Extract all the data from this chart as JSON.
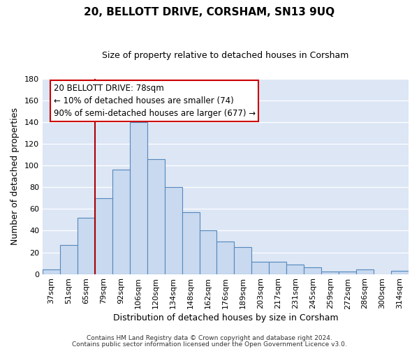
{
  "title": "20, BELLOTT DRIVE, CORSHAM, SN13 9UQ",
  "subtitle": "Size of property relative to detached houses in Corsham",
  "xlabel": "Distribution of detached houses by size in Corsham",
  "ylabel": "Number of detached properties",
  "categories": [
    "37sqm",
    "51sqm",
    "65sqm",
    "79sqm",
    "92sqm",
    "106sqm",
    "120sqm",
    "134sqm",
    "148sqm",
    "162sqm",
    "176sqm",
    "189sqm",
    "203sqm",
    "217sqm",
    "231sqm",
    "245sqm",
    "259sqm",
    "272sqm",
    "286sqm",
    "300sqm",
    "314sqm"
  ],
  "values": [
    4,
    27,
    52,
    70,
    96,
    140,
    106,
    80,
    57,
    40,
    30,
    25,
    11,
    11,
    9,
    6,
    2,
    2,
    4,
    0,
    3
  ],
  "bar_color": "#c8d9f0",
  "bar_edge_color": "#5588bb",
  "ylim": [
    0,
    180
  ],
  "yticks": [
    0,
    20,
    40,
    60,
    80,
    100,
    120,
    140,
    160,
    180
  ],
  "vline_x_index": 3,
  "vline_color": "#aa0000",
  "annotation_title": "20 BELLOTT DRIVE: 78sqm",
  "annotation_line1": "← 10% of detached houses are smaller (74)",
  "annotation_line2": "90% of semi-detached houses are larger (677) →",
  "annotation_box_color": "#ffffff",
  "annotation_box_edge": "#cc0000",
  "footer1": "Contains HM Land Registry data © Crown copyright and database right 2024.",
  "footer2": "Contains public sector information licensed under the Open Government Licence v3.0.",
  "axes_background_color": "#dce6f5",
  "fig_background": "#ffffff",
  "grid_color": "#ffffff",
  "title_fontsize": 11,
  "subtitle_fontsize": 9,
  "ylabel_fontsize": 9,
  "xlabel_fontsize": 9,
  "tick_fontsize": 8,
  "annotation_fontsize": 8.5,
  "footer_fontsize": 6.5
}
